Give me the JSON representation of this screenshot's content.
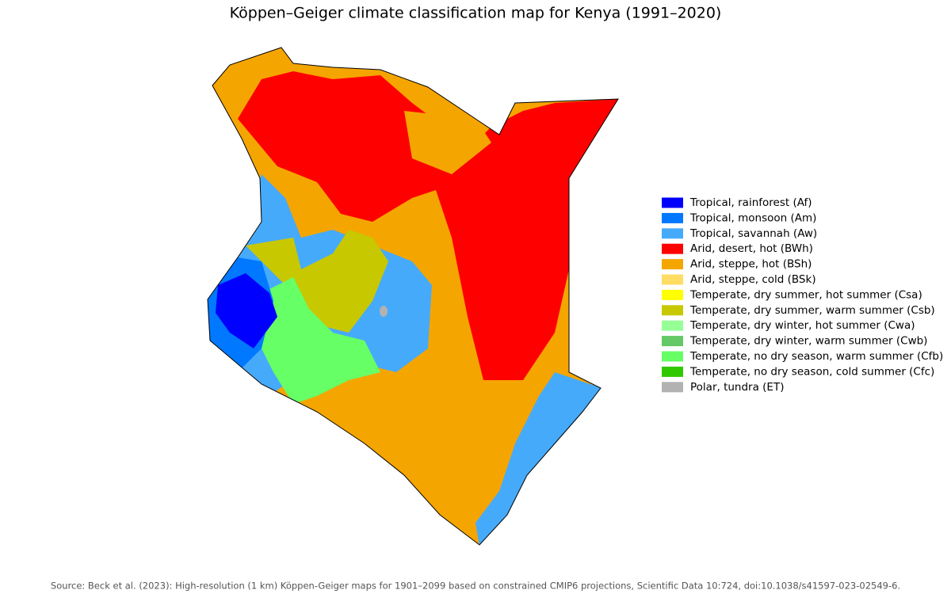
{
  "title": "Köppen–Geiger climate classification map for Kenya (1991–2020)",
  "legend": [
    {
      "label": "Tropical, rainforest (Af)",
      "color": "#0000ff"
    },
    {
      "label": "Tropical, monsoon (Am)",
      "color": "#0078ff"
    },
    {
      "label": "Tropical, savannah (Aw)",
      "color": "#46aafa"
    },
    {
      "label": "Arid, desert, hot (BWh)",
      "color": "#ff0000"
    },
    {
      "label": "Arid, steppe, hot (BSh)",
      "color": "#f5a500"
    },
    {
      "label": "Arid, steppe, cold (BSk)",
      "color": "#ffdc64"
    },
    {
      "label": "Temperate, dry summer, hot summer (Csa)",
      "color": "#ffff00"
    },
    {
      "label": "Temperate, dry summer, warm summer (Csb)",
      "color": "#c8c800"
    },
    {
      "label": "Temperate, dry winter, hot summer (Cwa)",
      "color": "#96ff96"
    },
    {
      "label": "Temperate, dry winter, warm summer (Cwb)",
      "color": "#64c864"
    },
    {
      "label": "Temperate, no dry season, warm summer (Cfb)",
      "color": "#66ff66"
    },
    {
      "label": "Temperate, no dry season, cold summer (Cfc)",
      "color": "#32c800"
    },
    {
      "label": "Polar, tundra (ET)",
      "color": "#b2b2b2"
    }
  ],
  "source": "Source: Beck et al. (2023): High-resolution (1 km) Köppen-Geiger maps for 1901–2099 based on constrained CMIP6 projections, Scientific Data 10:724, doi:10.1038/s41597-023-02549-6."
}
